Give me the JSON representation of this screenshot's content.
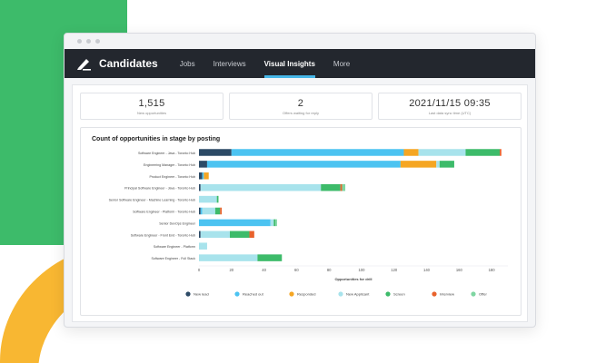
{
  "app": {
    "title": "Candidates",
    "nav": [
      {
        "label": "Jobs",
        "active": false
      },
      {
        "label": "Interviews",
        "active": false
      },
      {
        "label": "Visual Insights",
        "active": true
      },
      {
        "label": "More",
        "active": false
      }
    ]
  },
  "stats": [
    {
      "value": "1,515",
      "label": "New opportunities"
    },
    {
      "value": "2",
      "label": "Offers waiting for reply"
    },
    {
      "value": "2021/11/15 09:35",
      "label": "Last data sync time (UTC)"
    }
  ],
  "colors": {
    "New lead": "#2c4a66",
    "Reached out": "#4cc3f1",
    "Responded": "#f5a623",
    "New Applicant": "#a8e3ec",
    "Screen": "#3dbb6a",
    "Interview": "#e8622c",
    "Offer": "#7fd6a2"
  },
  "chart_data": {
    "type": "bar",
    "orientation": "horizontal",
    "stacked": true,
    "title": "Count of opportunities in stage by posting",
    "xlabel": "Opportunities for drill",
    "xlim": [
      0,
      190
    ],
    "xticks": [
      0,
      20,
      40,
      60,
      80,
      100,
      120,
      140,
      160,
      180
    ],
    "legend_position": "bottom",
    "categories": [
      "Software Engineer - Java - Toronto Hub",
      "Engineering Manager - Toronto Hub",
      "Product Engineer - Toronto Hub",
      "Principal Software Engineer - Java - Toronto Hub",
      "Senior Software Engineer - Machine Learning - Toronto Hub",
      "Software Engineer - Platform - Toronto Hub",
      "Senior DevOps Engineer",
      "Software Engineer - Front End - Toronto Hub",
      "Software Engineer - Platform",
      "Software Engineer - Full Stack"
    ],
    "series": [
      {
        "name": "New lead",
        "values": [
          20,
          5,
          2,
          1,
          0,
          1,
          0,
          1,
          0,
          0
        ]
      },
      {
        "name": "Reached out",
        "values": [
          106,
          119,
          1,
          0,
          0,
          1,
          44,
          0,
          0,
          0
        ]
      },
      {
        "name": "Responded",
        "values": [
          9,
          22,
          3,
          0,
          0,
          0,
          0,
          0,
          0,
          0
        ]
      },
      {
        "name": "New Applicant",
        "values": [
          29,
          2,
          0,
          74,
          11,
          8,
          2,
          18,
          5,
          36
        ]
      },
      {
        "name": "Screen",
        "values": [
          21,
          9,
          0,
          12,
          1,
          3,
          1,
          12,
          0,
          15
        ]
      },
      {
        "name": "Interview",
        "values": [
          1,
          0,
          0,
          1,
          0,
          1,
          0,
          3,
          0,
          0
        ]
      },
      {
        "name": "Offer",
        "values": [
          0,
          0,
          0,
          2,
          0,
          0,
          1,
          0,
          0,
          0
        ]
      }
    ]
  }
}
